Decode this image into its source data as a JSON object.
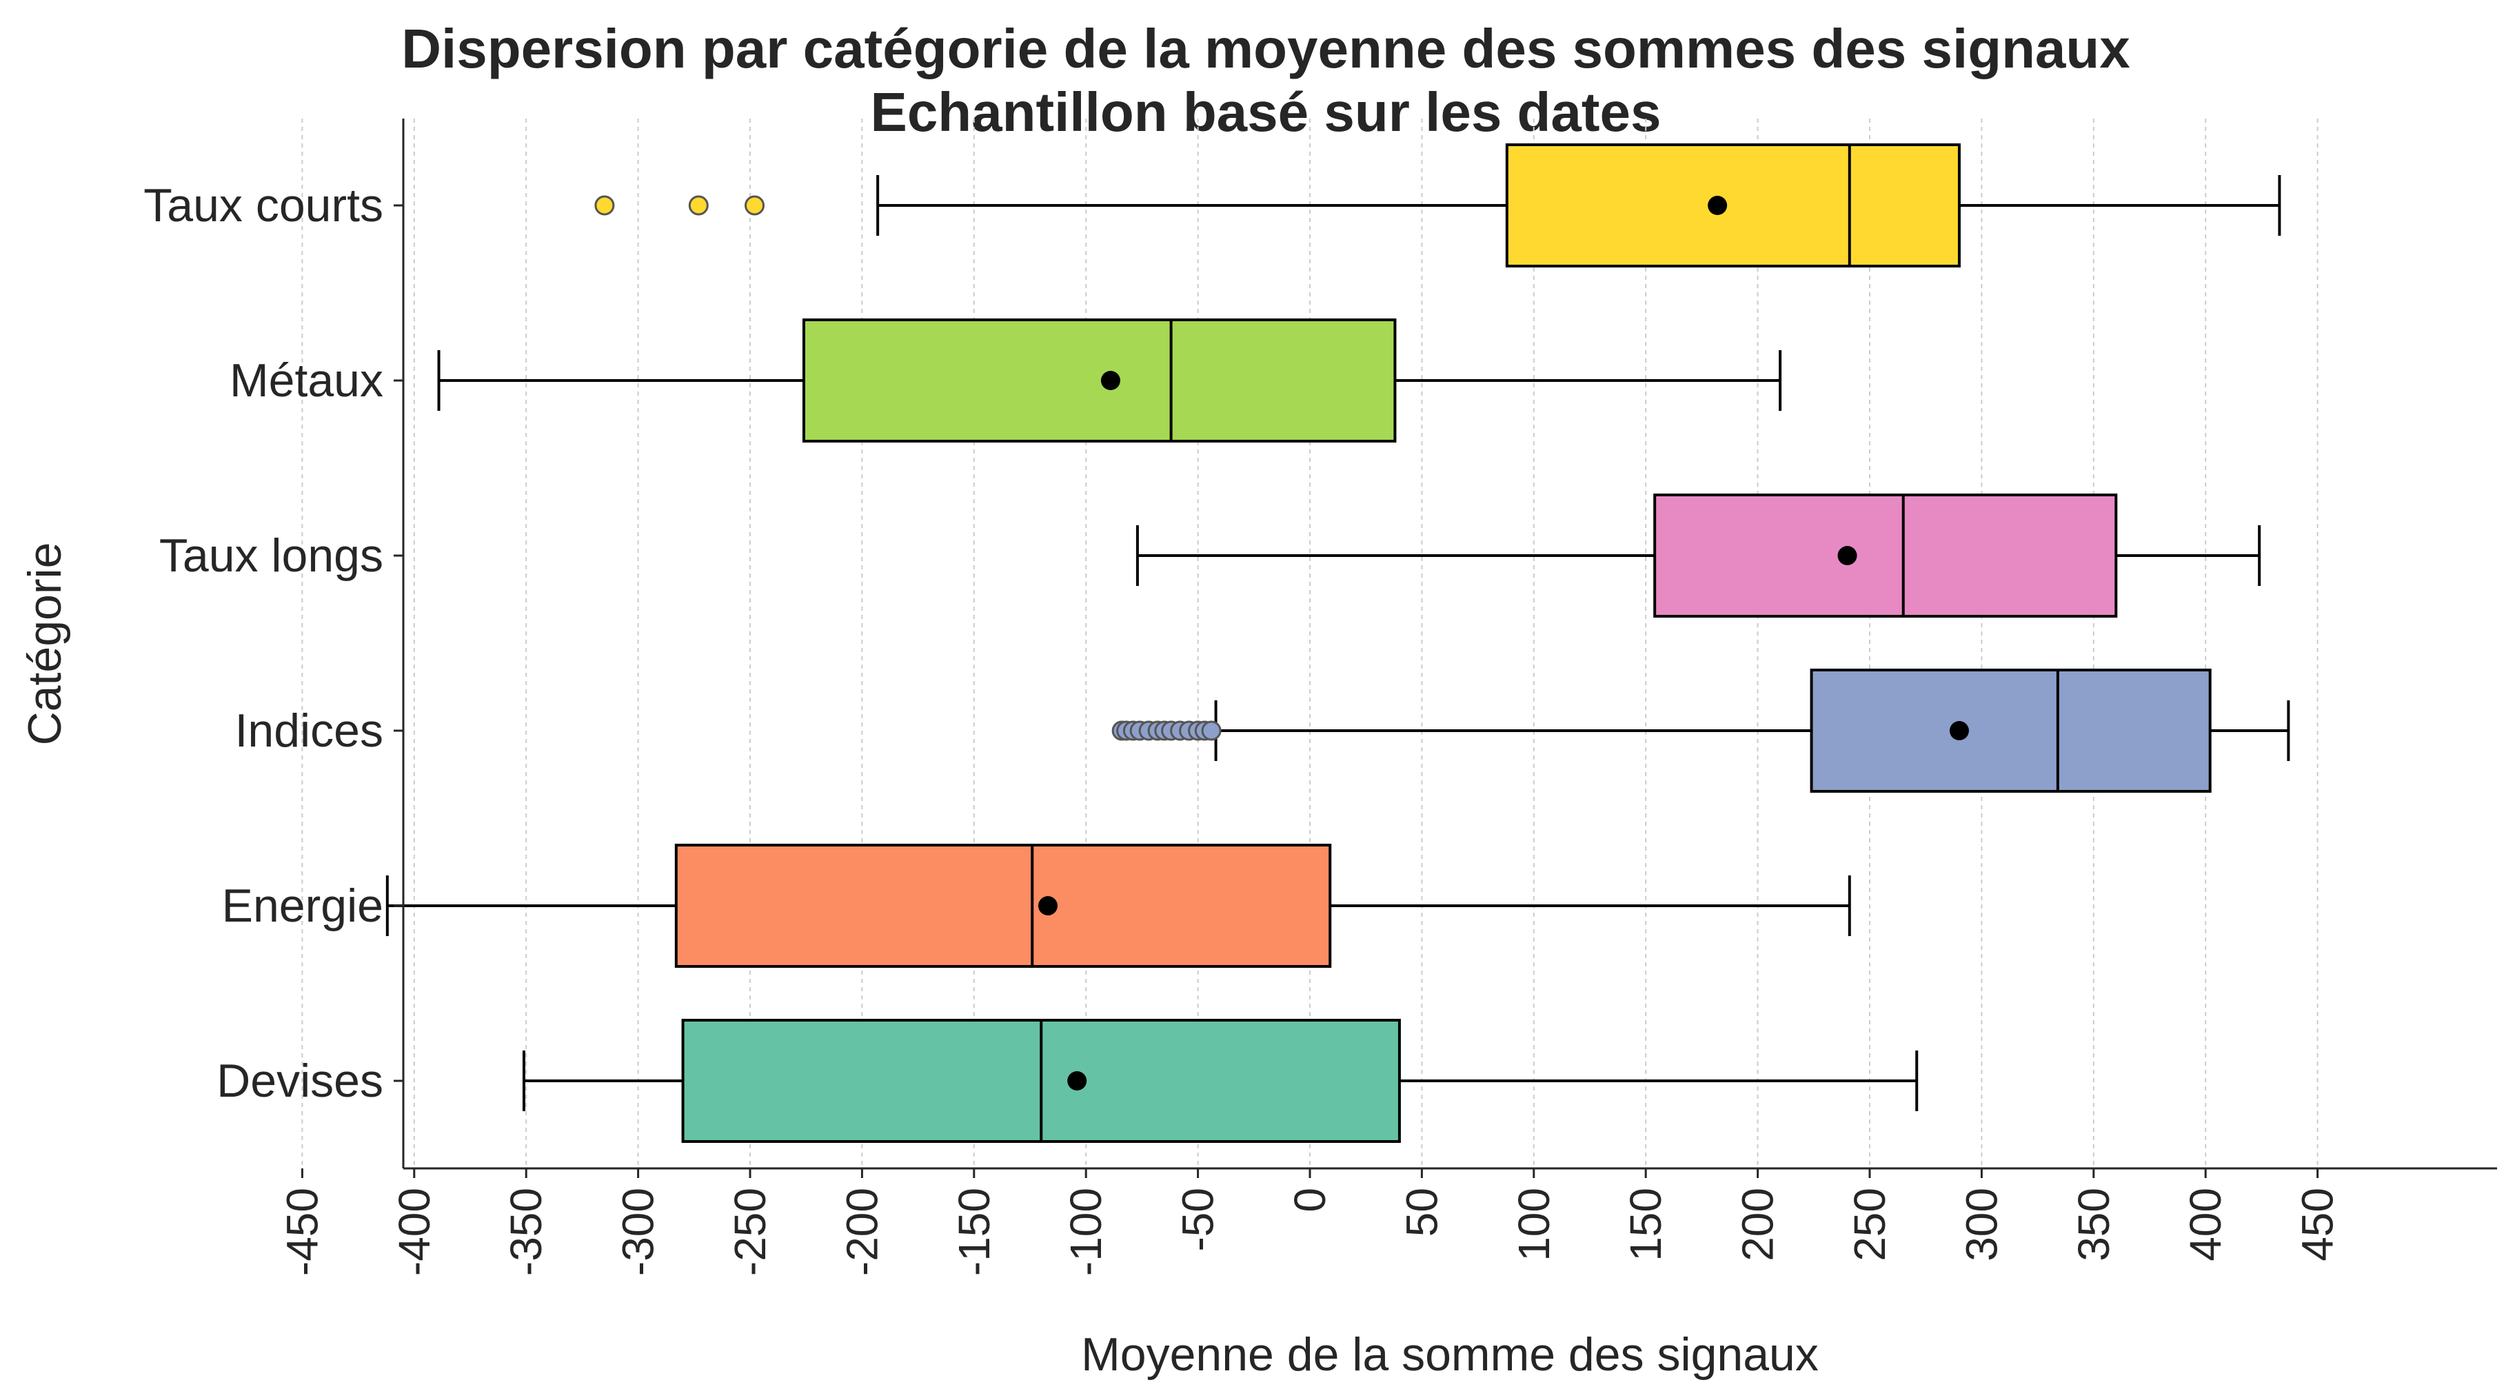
{
  "chart_data": {
    "type": "boxplot",
    "orientation": "horizontal",
    "title": "Dispersion par catégorie de la moyenne des sommes des signaux",
    "subtitle": "Echantillon basé sur les dates",
    "xlabel": "Moyenne de la somme des signaux",
    "ylabel": "Catégorie",
    "xlim": [
      -460,
      480
    ],
    "xticks": [
      -450,
      -400,
      -350,
      -300,
      -250,
      -200,
      -150,
      -100,
      -50,
      0,
      50,
      100,
      150,
      200,
      250,
      300,
      350,
      400,
      450
    ],
    "xtick_labels": [
      "-450",
      "-400",
      "-350",
      "-300",
      "-250",
      "-200",
      "-150",
      "-100",
      "-50",
      "0",
      "50",
      "100",
      "150",
      "200",
      "250",
      "300",
      "350",
      "400",
      "450"
    ],
    "grid": "vertical-dotted",
    "categories": [
      "Taux courts",
      "Métaux",
      "Taux longs",
      "Indices",
      "Energie",
      "Devises"
    ],
    "series": [
      {
        "category": "Taux courts",
        "color": "#ffd92f",
        "whisker_low": -193,
        "q1": 88,
        "median": 241,
        "q3": 290,
        "whisker_high": 433,
        "mean": 182,
        "outliers": [
          -315,
          -273,
          -248
        ]
      },
      {
        "category": "Métaux",
        "color": "#a6d854",
        "whisker_low": -389,
        "q1": -226,
        "median": -62,
        "q3": 38,
        "whisker_high": 210,
        "mean": -89,
        "outliers": []
      },
      {
        "category": "Taux longs",
        "color": "#e78ac3",
        "whisker_low": -77,
        "q1": 154,
        "median": 265,
        "q3": 360,
        "whisker_high": 424,
        "mean": 240,
        "outliers": []
      },
      {
        "category": "Indices",
        "color": "#8da0cb",
        "whisker_low": -42,
        "q1": 224,
        "median": 334,
        "q3": 402,
        "whisker_high": 437,
        "mean": 290,
        "outliers": [
          -84,
          -82,
          -79,
          -76,
          -72,
          -68,
          -65,
          -62,
          -58,
          -54,
          -50,
          -47,
          -44
        ]
      },
      {
        "category": "Energie",
        "color": "#fc8d62",
        "whisker_low": -412,
        "q1": -283,
        "median": -124,
        "q3": 9,
        "whisker_high": 241,
        "mean": -117,
        "outliers": []
      },
      {
        "category": "Devises",
        "color": "#66c2a5",
        "whisker_low": -351,
        "q1": -280,
        "median": -120,
        "q3": 40,
        "whisker_high": 271,
        "mean": -104,
        "outliers": []
      }
    ]
  }
}
